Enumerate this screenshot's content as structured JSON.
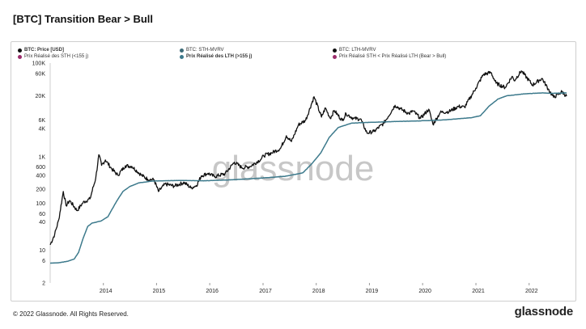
{
  "header": {
    "title": "[BTC] Transition Bear > Bull"
  },
  "legend": [
    {
      "label": "BTC: Price [USD]",
      "color": "#111111"
    },
    {
      "label": "BTC: STH-MVRV",
      "color": "#3d6b78"
    },
    {
      "label": "BTC: LTH-MVRV",
      "color": "#111111"
    },
    {
      "label": "Prix Réalisé des STH (<155 j)",
      "color": "#9b2c6c"
    },
    {
      "label": "Prix Réalisé des LTH (>155 j)",
      "color": "#3d7a8c"
    },
    {
      "label": "Prix Réalisé STH < Prix Réalisé LTH (Bear > Bull)",
      "color": "#9b2c6c"
    }
  ],
  "watermark": "glassnode",
  "footer": {
    "copyright": "© 2022 Glassnode. All Rights Reserved.",
    "logo": "glassnode"
  },
  "colors": {
    "price": "#111111",
    "lth": "#3d7a8c",
    "grid": "#e6e6e6"
  },
  "chart_data": {
    "type": "line",
    "y_scale": "log",
    "ylim": [
      2,
      100000
    ],
    "xlim": [
      "2013-01-01",
      "2022-09-15"
    ],
    "y_ticks": [
      {
        "value": 2,
        "label": "2"
      },
      {
        "value": 6,
        "label": "6"
      },
      {
        "value": 10,
        "label": "10"
      },
      {
        "value": 40,
        "label": "40"
      },
      {
        "value": 60,
        "label": "60"
      },
      {
        "value": 100,
        "label": "100"
      },
      {
        "value": 200,
        "label": "200"
      },
      {
        "value": 400,
        "label": "400"
      },
      {
        "value": 600,
        "label": "600"
      },
      {
        "value": 1000,
        "label": "1K"
      },
      {
        "value": 4000,
        "label": "4K"
      },
      {
        "value": 6000,
        "label": "6K"
      },
      {
        "value": 20000,
        "label": "20K"
      },
      {
        "value": 60000,
        "label": "60K"
      },
      {
        "value": 100000,
        "label": "100K"
      }
    ],
    "x_ticks": [
      "2014",
      "2015",
      "2016",
      "2017",
      "2018",
      "2019",
      "2020",
      "2021",
      "2022"
    ],
    "series": [
      {
        "name": "BTC: Price [USD]",
        "color": "#111111",
        "points": [
          [
            "2013-01-01",
            13
          ],
          [
            "2013-02-01",
            22
          ],
          [
            "2013-03-01",
            45
          ],
          [
            "2013-04-01",
            180
          ],
          [
            "2013-04-20",
            90
          ],
          [
            "2013-05-15",
            115
          ],
          [
            "2013-07-05",
            70
          ],
          [
            "2013-08-15",
            105
          ],
          [
            "2013-10-01",
            125
          ],
          [
            "2013-11-10",
            350
          ],
          [
            "2013-12-01",
            1100
          ],
          [
            "2013-12-20",
            650
          ],
          [
            "2014-01-15",
            850
          ],
          [
            "2014-02-25",
            560
          ],
          [
            "2014-04-10",
            400
          ],
          [
            "2014-06-01",
            640
          ],
          [
            "2014-07-15",
            620
          ],
          [
            "2014-09-20",
            400
          ],
          [
            "2014-11-01",
            330
          ],
          [
            "2014-12-15",
            320
          ],
          [
            "2015-01-14",
            180
          ],
          [
            "2015-03-01",
            260
          ],
          [
            "2015-05-01",
            235
          ],
          [
            "2015-07-10",
            280
          ],
          [
            "2015-08-25",
            215
          ],
          [
            "2015-10-01",
            240
          ],
          [
            "2015-11-05",
            390
          ],
          [
            "2015-12-20",
            440
          ],
          [
            "2016-02-01",
            375
          ],
          [
            "2016-04-15",
            430
          ],
          [
            "2016-06-18",
            760
          ],
          [
            "2016-08-10",
            580
          ],
          [
            "2016-10-01",
            610
          ],
          [
            "2016-12-20",
            890
          ],
          [
            "2017-01-05",
            1050
          ],
          [
            "2017-03-01",
            1200
          ],
          [
            "2017-05-01",
            1500
          ],
          [
            "2017-06-10",
            2800
          ],
          [
            "2017-07-15",
            2100
          ],
          [
            "2017-09-01",
            4800
          ],
          [
            "2017-10-20",
            6000
          ],
          [
            "2017-12-17",
            19000
          ],
          [
            "2018-02-06",
            7000
          ],
          [
            "2018-03-05",
            11000
          ],
          [
            "2018-04-07",
            6600
          ],
          [
            "2018-05-05",
            9700
          ],
          [
            "2018-06-28",
            5900
          ],
          [
            "2018-07-25",
            8300
          ],
          [
            "2018-09-15",
            6500
          ],
          [
            "2018-11-01",
            6400
          ],
          [
            "2018-12-15",
            3200
          ],
          [
            "2019-02-01",
            3450
          ],
          [
            "2019-04-10",
            5200
          ],
          [
            "2019-06-26",
            12500
          ],
          [
            "2019-08-01",
            10500
          ],
          [
            "2019-09-30",
            8300
          ],
          [
            "2019-10-26",
            9500
          ],
          [
            "2019-12-18",
            6600
          ],
          [
            "2020-02-12",
            10300
          ],
          [
            "2020-03-12",
            4900
          ],
          [
            "2020-05-01",
            8800
          ],
          [
            "2020-07-01",
            9200
          ],
          [
            "2020-09-01",
            11800
          ],
          [
            "2020-10-15",
            11400
          ],
          [
            "2020-12-31",
            29000
          ],
          [
            "2021-02-21",
            57000
          ],
          [
            "2021-04-14",
            63000
          ],
          [
            "2021-05-19",
            37000
          ],
          [
            "2021-07-20",
            30000
          ],
          [
            "2021-09-07",
            52000
          ],
          [
            "2021-09-20",
            42000
          ],
          [
            "2021-11-09",
            68000
          ],
          [
            "2022-01-24",
            34000
          ],
          [
            "2022-03-30",
            47000
          ],
          [
            "2022-05-12",
            28000
          ],
          [
            "2022-06-18",
            18500
          ],
          [
            "2022-08-15",
            24500
          ],
          [
            "2022-09-15",
            19500
          ]
        ]
      },
      {
        "name": "Prix Réalisé des LTH (>155 j)",
        "color": "#3d7a8c",
        "points": [
          [
            "2013-01-01",
            5.3
          ],
          [
            "2013-03-01",
            5.4
          ],
          [
            "2013-05-01",
            5.8
          ],
          [
            "2013-06-15",
            6.5
          ],
          [
            "2013-07-15",
            9
          ],
          [
            "2013-08-15",
            18
          ],
          [
            "2013-09-15",
            32
          ],
          [
            "2013-10-15",
            38
          ],
          [
            "2013-12-15",
            42
          ],
          [
            "2014-02-01",
            52
          ],
          [
            "2014-04-01",
            110
          ],
          [
            "2014-05-15",
            180
          ],
          [
            "2014-07-01",
            230
          ],
          [
            "2014-09-01",
            275
          ],
          [
            "2014-12-01",
            300
          ],
          [
            "2015-06-01",
            310
          ],
          [
            "2015-12-01",
            305
          ],
          [
            "2016-06-01",
            320
          ],
          [
            "2016-12-01",
            345
          ],
          [
            "2017-06-01",
            380
          ],
          [
            "2017-10-01",
            450
          ],
          [
            "2017-12-01",
            700
          ],
          [
            "2018-02-01",
            1200
          ],
          [
            "2018-04-01",
            2600
          ],
          [
            "2018-06-01",
            4200
          ],
          [
            "2018-09-01",
            5200
          ],
          [
            "2019-01-01",
            5400
          ],
          [
            "2019-06-01",
            5600
          ],
          [
            "2019-12-01",
            5800
          ],
          [
            "2020-06-01",
            6100
          ],
          [
            "2020-12-01",
            6800
          ],
          [
            "2021-02-01",
            7500
          ],
          [
            "2021-04-01",
            12000
          ],
          [
            "2021-06-01",
            17000
          ],
          [
            "2021-08-01",
            20000
          ],
          [
            "2021-12-01",
            22000
          ],
          [
            "2022-04-01",
            23000
          ],
          [
            "2022-06-01",
            22500
          ],
          [
            "2022-09-15",
            23000
          ]
        ]
      }
    ]
  }
}
